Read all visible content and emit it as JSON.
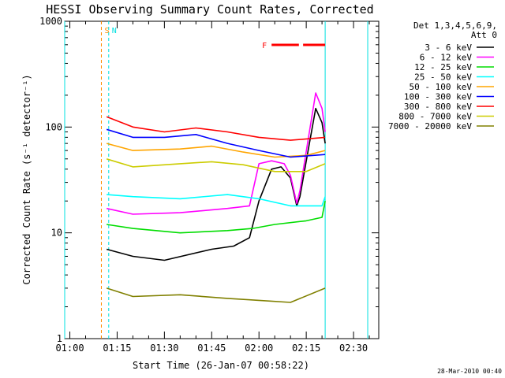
{
  "chart_data": {
    "type": "line",
    "title": "HESSI Observing Summary Count Rates, Corrected",
    "xlabel": "Start Time (26-Jan-07 00:58:22)",
    "ylabel": "Corrected Count Rate (s⁻¹ detector⁻¹)",
    "yscale": "log",
    "xlim": [
      "00:58:22",
      "02:38:00"
    ],
    "ylim": [
      1,
      1000
    ],
    "x_ticks": [
      "01:00",
      "01:15",
      "01:30",
      "01:45",
      "02:00",
      "02:15",
      "02:30"
    ],
    "y_ticks": [
      "1",
      "10",
      "100",
      "1000"
    ],
    "legend_title_lines": [
      "Det 1,3,4,5,6,9,",
      "Att 0"
    ],
    "legend_placement": "right",
    "timestamp": "28-Mar-2010 00:40",
    "markers": [
      {
        "label": "S",
        "time": "01:10:00",
        "color": "#ff8c00",
        "style": "dashed"
      },
      {
        "label": "N",
        "time": "01:12:20",
        "color": "#00e0e0",
        "style": "dashed"
      }
    ],
    "vertical_lines": [
      {
        "time": "00:58:22",
        "color": "#00e0e0"
      },
      {
        "time": "02:21:00",
        "color": "#00e0e0"
      },
      {
        "time": "02:34:30",
        "color": "#00e0e0"
      }
    ],
    "flare_flag": {
      "label": "F",
      "color": "#ff0000",
      "segments": [
        [
          "02:04:00",
          "02:12:40"
        ],
        [
          "02:14:00",
          "02:21:00"
        ]
      ]
    },
    "series": [
      {
        "name": "3 - 6 keV",
        "color": "#000000",
        "time": [
          "01:11:40",
          "01:20:00",
          "01:30:00",
          "01:45:00",
          "01:52:00",
          "01:57:00",
          "02:00:00",
          "02:04:00",
          "02:07:00",
          "02:10:00",
          "02:12:00",
          "02:13:00",
          "02:16:00",
          "02:18:00",
          "02:20:00",
          "02:21:00"
        ],
        "values": [
          7,
          6,
          5.5,
          7,
          7.5,
          9,
          20,
          40,
          42,
          33,
          18,
          22,
          70,
          150,
          110,
          70
        ]
      },
      {
        "name": "6 - 12 keV",
        "color": "#ff00ff",
        "time": [
          "01:11:40",
          "01:20:00",
          "01:35:00",
          "01:50:00",
          "01:57:00",
          "02:00:00",
          "02:04:00",
          "02:08:00",
          "02:10:00",
          "02:12:00",
          "02:13:00",
          "02:16:00",
          "02:18:00",
          "02:20:00",
          "02:21:00"
        ],
        "values": [
          17,
          15,
          15.5,
          17,
          18,
          45,
          48,
          45,
          35,
          19,
          25,
          90,
          210,
          150,
          90
        ]
      },
      {
        "name": "12 - 25 keV",
        "color": "#00dd00",
        "time": [
          "01:11:40",
          "01:20:00",
          "01:35:00",
          "01:50:00",
          "01:58:00",
          "02:05:00",
          "02:15:00",
          "02:20:00",
          "02:21:00"
        ],
        "values": [
          12,
          11,
          10,
          10.5,
          11,
          12,
          13,
          14,
          20
        ]
      },
      {
        "name": "25 - 50 keV",
        "color": "#00ffff",
        "time": [
          "01:11:40",
          "01:20:00",
          "01:35:00",
          "01:50:00",
          "02:00:00",
          "02:10:00",
          "02:20:00",
          "02:21:00"
        ],
        "values": [
          23,
          22,
          21,
          23,
          21,
          18,
          18,
          22
        ]
      },
      {
        "name": "50 - 100 keV",
        "color": "#ffa500",
        "time": [
          "01:11:40",
          "01:20:00",
          "01:35:00",
          "01:45:00",
          "01:55:00",
          "02:05:00",
          "02:15:00",
          "02:21:00"
        ],
        "values": [
          70,
          60,
          62,
          66,
          58,
          52,
          54,
          60
        ]
      },
      {
        "name": "100 - 300 keV",
        "color": "#0000ff",
        "time": [
          "01:11:40",
          "01:20:00",
          "01:30:00",
          "01:40:00",
          "01:50:00",
          "02:00:00",
          "02:10:00",
          "02:21:00"
        ],
        "values": [
          95,
          80,
          80,
          85,
          70,
          60,
          52,
          55
        ]
      },
      {
        "name": "300 - 800 keV",
        "color": "#ff0000",
        "time": [
          "01:11:40",
          "01:20:00",
          "01:30:00",
          "01:40:00",
          "01:50:00",
          "02:00:00",
          "02:10:00",
          "02:21:00"
        ],
        "values": [
          125,
          100,
          90,
          98,
          90,
          80,
          75,
          80
        ]
      },
      {
        "name": "800 - 7000 keV",
        "color": "#cccc00",
        "time": [
          "01:11:40",
          "01:20:00",
          "01:35:00",
          "01:45:00",
          "01:55:00",
          "02:05:00",
          "02:15:00",
          "02:21:00"
        ],
        "values": [
          50,
          42,
          45,
          47,
          44,
          38,
          38,
          45
        ]
      },
      {
        "name": "7000 - 20000 keV",
        "color": "#808000",
        "time": [
          "01:11:40",
          "01:20:00",
          "01:35:00",
          "01:50:00",
          "02:00:00",
          "02:10:00",
          "02:21:00"
        ],
        "values": [
          3,
          2.5,
          2.6,
          2.4,
          2.3,
          2.2,
          3
        ]
      }
    ]
  }
}
